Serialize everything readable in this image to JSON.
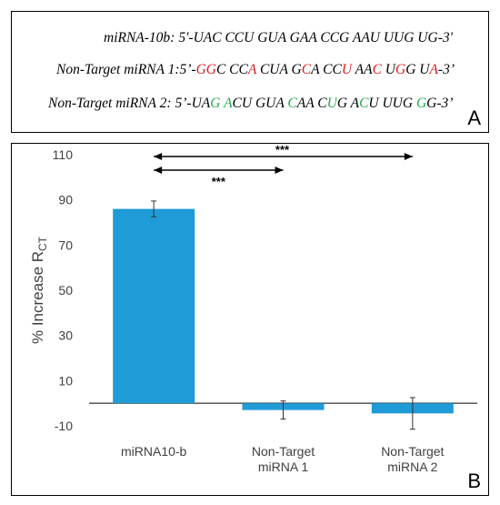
{
  "panel_a": {
    "letter": "A",
    "sequences": [
      {
        "label": "miRNA-10b:",
        "segments": [
          {
            "text": "5'-UAC CCU GUA GAA CCG AAU UUG UG-3'",
            "color": "black"
          }
        ]
      },
      {
        "label": "Non-Target miRNA 1:",
        "segments": [
          {
            "text": "5’-",
            "color": "black"
          },
          {
            "text": "GG",
            "color": "red"
          },
          {
            "text": "C CC",
            "color": "black"
          },
          {
            "text": "A",
            "color": "red"
          },
          {
            "text": " CUA G",
            "color": "black"
          },
          {
            "text": "C",
            "color": "red"
          },
          {
            "text": "A CC",
            "color": "black"
          },
          {
            "text": "U",
            "color": "red"
          },
          {
            "text": " AA",
            "color": "black"
          },
          {
            "text": "C",
            "color": "red"
          },
          {
            "text": " U",
            "color": "black"
          },
          {
            "text": "G",
            "color": "red"
          },
          {
            "text": "G U",
            "color": "black"
          },
          {
            "text": "A",
            "color": "red"
          },
          {
            "text": "-3’",
            "color": "black"
          }
        ]
      },
      {
        "label": "Non-Target miRNA  2:",
        "segments": [
          {
            "text": "5’-UA",
            "color": "black"
          },
          {
            "text": "G",
            "color": "green"
          },
          {
            "text": " ",
            "color": "black"
          },
          {
            "text": "A",
            "color": "green"
          },
          {
            "text": "CU GUA ",
            "color": "black"
          },
          {
            "text": "C",
            "color": "green"
          },
          {
            "text": "AA C",
            "color": "black"
          },
          {
            "text": "U",
            "color": "green"
          },
          {
            "text": "G A",
            "color": "black"
          },
          {
            "text": "C",
            "color": "green"
          },
          {
            "text": "U UUG ",
            "color": "black"
          },
          {
            "text": "G",
            "color": "green"
          },
          {
            "text": "G-3’",
            "color": "black"
          }
        ]
      }
    ]
  },
  "panel_b": {
    "letter": "B"
  },
  "colors": {
    "bar": "#1f9bd7",
    "red": "#e0191b",
    "green": "#22aa4b"
  },
  "chart_data": {
    "type": "bar",
    "ylabel_main": "% Increase R",
    "ylabel_sub": "CT",
    "ylim": [
      -10,
      110
    ],
    "yticks": [
      110,
      90,
      70,
      50,
      30,
      10,
      -10
    ],
    "categories": [
      [
        "miRNA10-b"
      ],
      [
        "Non-Target",
        "miRNA 1"
      ],
      [
        "Non-Target",
        "miRNA 2"
      ]
    ],
    "values": [
      86,
      -3,
      -4.5
    ],
    "errors": [
      3.5,
      4,
      7
    ],
    "significance": [
      {
        "from": 0,
        "to": 1,
        "label": "***"
      },
      {
        "from": 0,
        "to": 2,
        "label": "***"
      }
    ]
  }
}
